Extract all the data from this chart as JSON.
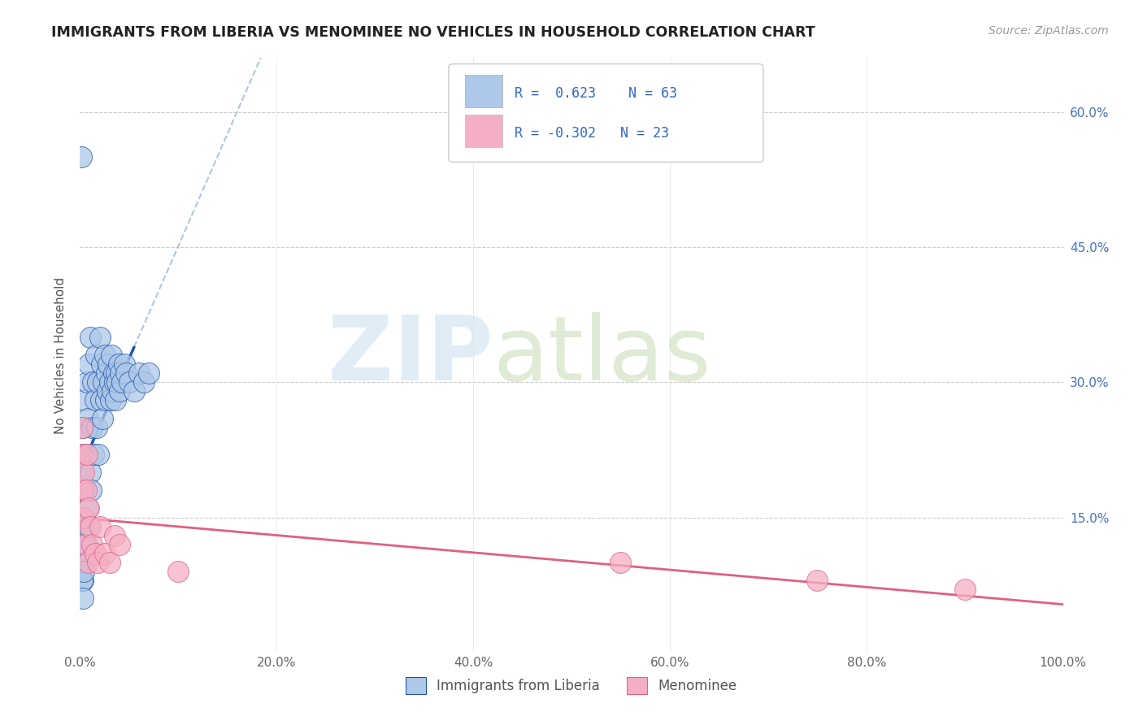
{
  "title": "IMMIGRANTS FROM LIBERIA VS MENOMINEE NO VEHICLES IN HOUSEHOLD CORRELATION CHART",
  "source": "Source: ZipAtlas.com",
  "ylabel": "No Vehicles in Household",
  "legend_label1": "Immigrants from Liberia",
  "legend_label2": "Menominee",
  "R1": 0.623,
  "N1": 63,
  "R2": -0.302,
  "N2": 23,
  "color1": "#adc8e8",
  "color2": "#f5afc4",
  "line_color1": "#2255aa",
  "line_color2": "#e06080",
  "xlim": [
    0.0,
    1.0
  ],
  "ylim": [
    0.0,
    0.66
  ],
  "yticks": [
    0.15,
    0.3,
    0.45,
    0.6
  ],
  "ytick_labels": [
    "15.0%",
    "30.0%",
    "45.0%",
    "60.0%"
  ],
  "xticks": [
    0.0,
    0.2,
    0.4,
    0.6,
    0.8,
    1.0
  ],
  "xtick_labels": [
    "0.0%",
    "20.0%",
    "40.0%",
    "60.0%",
    "80.0%",
    "100.0%"
  ],
  "blue_x": [
    0.001,
    0.001,
    0.002,
    0.002,
    0.003,
    0.003,
    0.003,
    0.004,
    0.004,
    0.005,
    0.005,
    0.006,
    0.006,
    0.007,
    0.008,
    0.008,
    0.009,
    0.009,
    0.01,
    0.01,
    0.011,
    0.012,
    0.013,
    0.014,
    0.015,
    0.016,
    0.017,
    0.018,
    0.019,
    0.02,
    0.021,
    0.022,
    0.023,
    0.024,
    0.025,
    0.026,
    0.027,
    0.028,
    0.029,
    0.03,
    0.031,
    0.032,
    0.033,
    0.034,
    0.035,
    0.036,
    0.037,
    0.038,
    0.039,
    0.04,
    0.041,
    0.043,
    0.045,
    0.047,
    0.05,
    0.055,
    0.06,
    0.065,
    0.07,
    0.001,
    0.002,
    0.003,
    0.004
  ],
  "blue_y": [
    0.1,
    0.2,
    0.12,
    0.22,
    0.08,
    0.14,
    0.25,
    0.1,
    0.18,
    0.15,
    0.28,
    0.12,
    0.22,
    0.3,
    0.16,
    0.26,
    0.14,
    0.32,
    0.2,
    0.35,
    0.18,
    0.25,
    0.3,
    0.22,
    0.28,
    0.33,
    0.25,
    0.3,
    0.22,
    0.35,
    0.28,
    0.32,
    0.26,
    0.3,
    0.33,
    0.28,
    0.31,
    0.29,
    0.32,
    0.3,
    0.28,
    0.33,
    0.29,
    0.31,
    0.3,
    0.28,
    0.31,
    0.3,
    0.32,
    0.29,
    0.31,
    0.3,
    0.32,
    0.31,
    0.3,
    0.29,
    0.31,
    0.3,
    0.31,
    0.55,
    0.08,
    0.06,
    0.09
  ],
  "pink_x": [
    0.001,
    0.002,
    0.002,
    0.003,
    0.004,
    0.005,
    0.006,
    0.007,
    0.008,
    0.009,
    0.01,
    0.012,
    0.015,
    0.018,
    0.02,
    0.025,
    0.03,
    0.035,
    0.04,
    0.1,
    0.55,
    0.75,
    0.9
  ],
  "pink_y": [
    0.22,
    0.18,
    0.25,
    0.15,
    0.2,
    0.12,
    0.18,
    0.22,
    0.1,
    0.16,
    0.14,
    0.12,
    0.11,
    0.1,
    0.14,
    0.11,
    0.1,
    0.13,
    0.12,
    0.09,
    0.1,
    0.08,
    0.07
  ]
}
